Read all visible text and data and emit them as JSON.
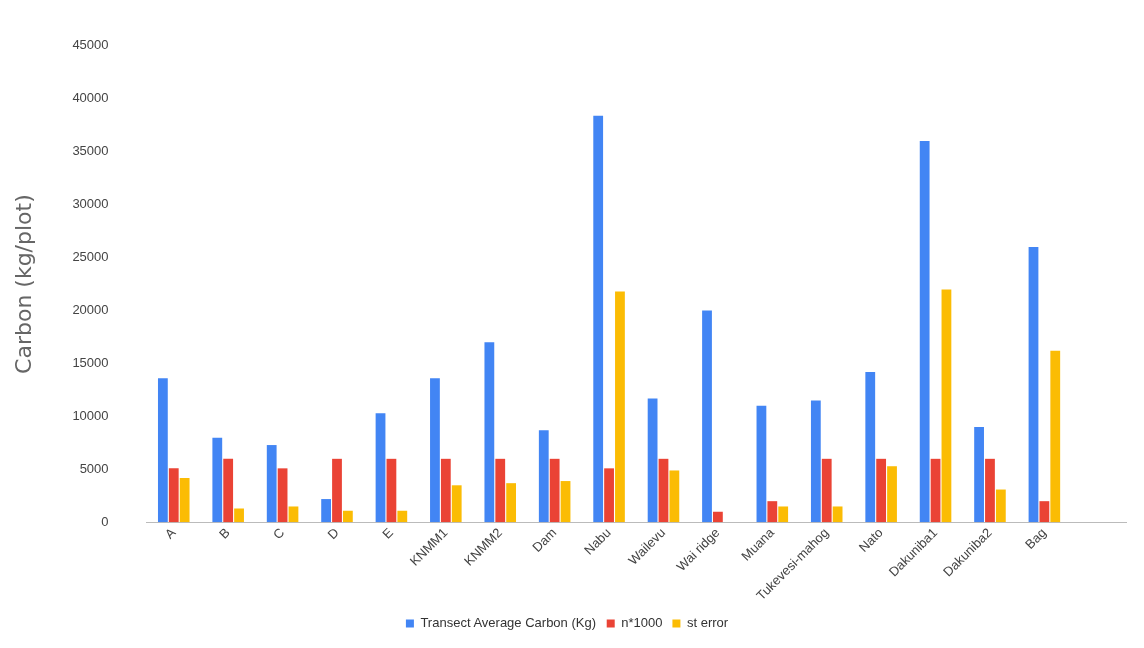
{
  "chart_data": {
    "type": "bar",
    "ylabel": "Carbon (kg/plot)",
    "categories": [
      "A",
      "B",
      "C",
      "D",
      "E",
      "KNMM1",
      "KNMM2",
      "Dam",
      "Nabu",
      "Wailevu",
      "Wai ridge",
      "Muana",
      "Tukevesi-mahog",
      "Nato",
      "Dakuniba1",
      "Dakuniba2",
      "Bag",
      null
    ],
    "series": [
      {
        "name": "Transect Average Carbon (Kg)",
        "color": "#4285f4",
        "values": [
          13600,
          8000,
          7300,
          2200,
          10300,
          13600,
          17000,
          8700,
          38400,
          11700,
          20000,
          11000,
          11500,
          14200,
          36000,
          9000,
          26000,
          null
        ]
      },
      {
        "name": "n*1000",
        "color": "#ea4335",
        "values": [
          5100,
          6000,
          5100,
          6000,
          6000,
          6000,
          6000,
          6000,
          5100,
          6000,
          1000,
          2000,
          6000,
          6000,
          6000,
          6000,
          2000,
          null
        ]
      },
      {
        "name": "st error",
        "color": "#fbbc04",
        "values": [
          4200,
          1300,
          1500,
          1100,
          1100,
          3500,
          3700,
          3900,
          21800,
          4900,
          null,
          1500,
          1500,
          5300,
          22000,
          3100,
          16200,
          null
        ]
      }
    ],
    "ylim": [
      0,
      45000
    ],
    "yticks": [
      0,
      5000,
      10000,
      15000,
      20000,
      25000,
      30000,
      35000,
      40000,
      45000
    ],
    "grid": false,
    "legend": "bottom"
  }
}
